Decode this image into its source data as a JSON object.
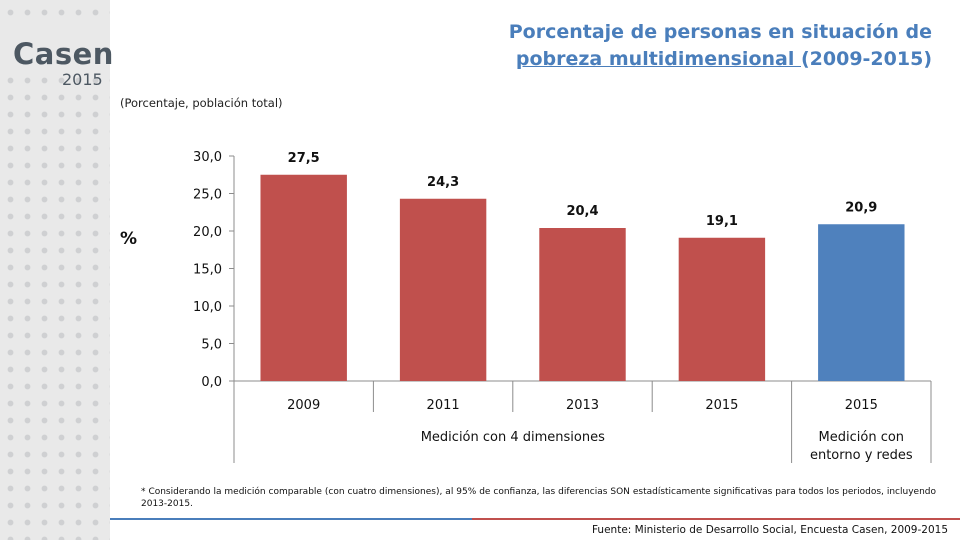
{
  "logo": {
    "word": "Casen",
    "year": "2015"
  },
  "header": {
    "title_line1": "Porcentaje de personas en situación de",
    "title_line2_underlined": "pobreza multidimensional ",
    "title_line2_rest": "(2009-2015)",
    "subtitle": "(Porcentaje, población total)"
  },
  "chart_data": {
    "type": "bar",
    "ylabel": "%",
    "ylim": [
      0,
      30
    ],
    "yticks": [
      "0,0",
      "5,0",
      "10,0",
      "15,0",
      "20,0",
      "25,0",
      "30,0"
    ],
    "categories": [
      "2009",
      "2011",
      "2013",
      "2015",
      "2015"
    ],
    "values": [
      27.5,
      24.3,
      20.4,
      19.1,
      20.9
    ],
    "value_labels": [
      "27,5",
      "24,3",
      "20,4",
      "19,1",
      "20,9"
    ],
    "bar_colors": [
      "#c0504d",
      "#c0504d",
      "#c0504d",
      "#c0504d",
      "#4f81bd"
    ],
    "groups": [
      {
        "label": "Medición con 4 dimensiones",
        "categories": 4
      },
      {
        "label_line1": "Medición con",
        "label_line2": "entorno y redes",
        "categories": 1
      }
    ],
    "grid": false
  },
  "footnote": "* Considerando la medición comparable (con cuatro dimensiones), al 95% de confianza, las diferencias SON estadísticamente significativas para todos los periodos, incluyendo 2013-2015.",
  "source": "Fuente: Ministerio de Desarrollo Social, Encuesta Casen, 2009-2015"
}
